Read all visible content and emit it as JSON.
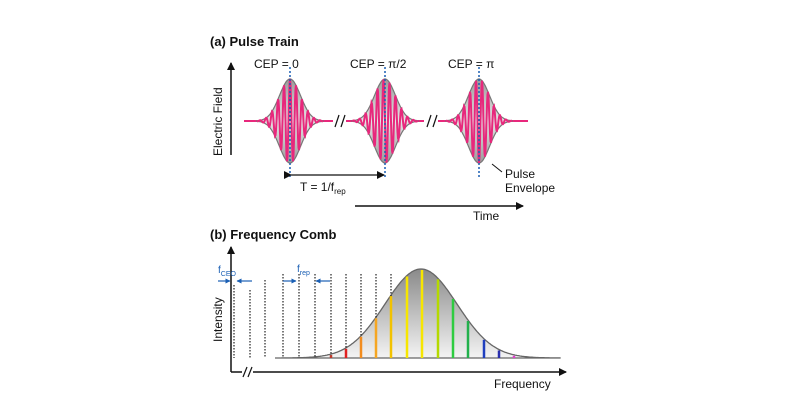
{
  "panel_a": {
    "title": "(a) Pulse Train",
    "y_axis_label": "Electric Field",
    "x_axis_label": "Time",
    "pulses": [
      {
        "label": "CEP = 0",
        "phase": 0
      },
      {
        "label": "CEP = π/2",
        "phase": 1.5708
      },
      {
        "label": "CEP = π",
        "phase": 3.1416
      }
    ],
    "period_label_main": "T = 1/f",
    "period_label_sub": "rep",
    "envelope_label_line1": "Pulse",
    "envelope_label_line2": "Envelope"
  },
  "panel_b": {
    "title": "(b) Frequency Comb",
    "y_axis_label": "Intensity",
    "x_axis_label": "Frequency",
    "fceo_main": "f",
    "fceo_sub": "CEO",
    "frep_main": "f",
    "frep_sub": "rep",
    "comb_line_colors": [
      "#c0392b",
      "#e02020",
      "#f28c1e",
      "#f5a623",
      "#f2c200",
      "#f7e600",
      "#f7e600",
      "#b5d900",
      "#2ecc40",
      "#22b14c",
      "#1f3fbf",
      "#2a2fae",
      "#e040d0"
    ]
  }
}
